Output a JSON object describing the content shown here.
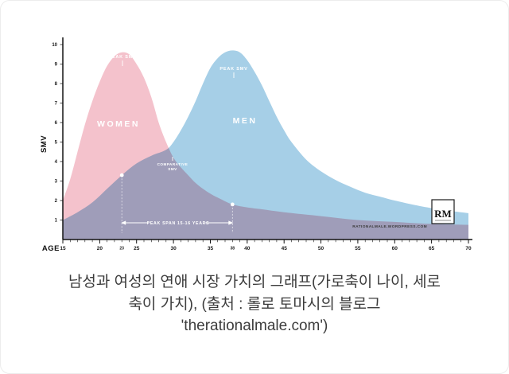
{
  "chart": {
    "x_axis_label": "AGE",
    "y_axis_label": "SMV",
    "annotations": {
      "women_label": "WOMEN",
      "men_label": "MEN",
      "women_peak_label": "PEAK SMV",
      "men_peak_label": "PEAK SMV",
      "comparative_label_line1": "COMPARATIVE",
      "comparative_label_line2": "SMV",
      "peak_span_label": "PEAK SPAN 15-16 YEARS",
      "watermark": "RATIONALMALE.WORDPRESS.COM",
      "logo_text": "RM"
    },
    "colors": {
      "women_fill": "#f4c2cc",
      "men_fill": "#a6cfe7",
      "axis": "#141414",
      "label_on_fill": "#ffffff"
    }
  },
  "chart_data": {
    "type": "area",
    "title": "",
    "xlabel": "AGE",
    "ylabel": "SMV",
    "xlim": [
      15,
      70
    ],
    "ylim": [
      0,
      10
    ],
    "x_ticks": [
      15,
      20,
      25,
      30,
      35,
      40,
      45,
      50,
      55,
      60,
      65,
      70
    ],
    "special_x_ticks": [
      23,
      38
    ],
    "y_ticks": [
      10,
      9,
      8,
      7,
      6,
      5,
      4,
      3,
      2,
      1
    ],
    "grid": false,
    "series": [
      {
        "name": "WOMEN",
        "peak_age": 23,
        "x": [
          15,
          16,
          17,
          18,
          19,
          20,
          21,
          22,
          23,
          24,
          25,
          26,
          27,
          28,
          29,
          30,
          31,
          32,
          33,
          34,
          35,
          36,
          38,
          40,
          42,
          45,
          50,
          55,
          60,
          65,
          70
        ],
        "values": [
          2.0,
          3.1,
          4.5,
          5.9,
          7.1,
          8.1,
          8.9,
          9.4,
          9.6,
          9.5,
          9.0,
          8.3,
          7.3,
          6.0,
          5.0,
          4.2,
          3.7,
          3.3,
          2.9,
          2.6,
          2.35,
          2.15,
          1.8,
          1.65,
          1.55,
          1.4,
          1.2,
          1.0,
          0.9,
          0.8,
          0.75
        ]
      },
      {
        "name": "MEN",
        "peak_age": 38,
        "x": [
          15,
          17,
          19,
          21,
          23,
          25,
          27,
          29,
          30,
          31,
          32,
          33,
          34,
          35,
          36,
          37,
          38,
          39,
          40,
          41,
          42,
          43,
          44,
          45,
          46,
          48,
          50,
          52,
          54,
          56,
          58,
          60,
          63,
          66,
          70
        ],
        "values": [
          1.0,
          1.4,
          1.9,
          2.6,
          3.3,
          3.9,
          4.3,
          4.6,
          5.0,
          5.6,
          6.3,
          7.1,
          8.0,
          8.8,
          9.3,
          9.6,
          9.7,
          9.6,
          9.2,
          8.6,
          7.9,
          7.1,
          6.3,
          5.6,
          5.0,
          4.1,
          3.5,
          3.05,
          2.7,
          2.4,
          2.2,
          2.0,
          1.75,
          1.55,
          1.35
        ]
      }
    ],
    "markers": [
      {
        "age": 23,
        "series": "MEN",
        "smv": 3.3
      },
      {
        "age": 38,
        "series": "WOMEN",
        "smv": 1.8
      }
    ],
    "peak_span": {
      "from_age": 23,
      "to_age": 38,
      "label": "PEAK SPAN 15-16 YEARS"
    },
    "comparative_point": {
      "age": 29.5,
      "smv": 4.6
    }
  },
  "caption": {
    "lines": [
      "남성과 여성의 연애 시장 가치의 그래프(가로축이 나이, 세로",
      "축이 가치), (출처 : 롤로 토마시의 블로그",
      "'therationalmale.com')"
    ]
  }
}
